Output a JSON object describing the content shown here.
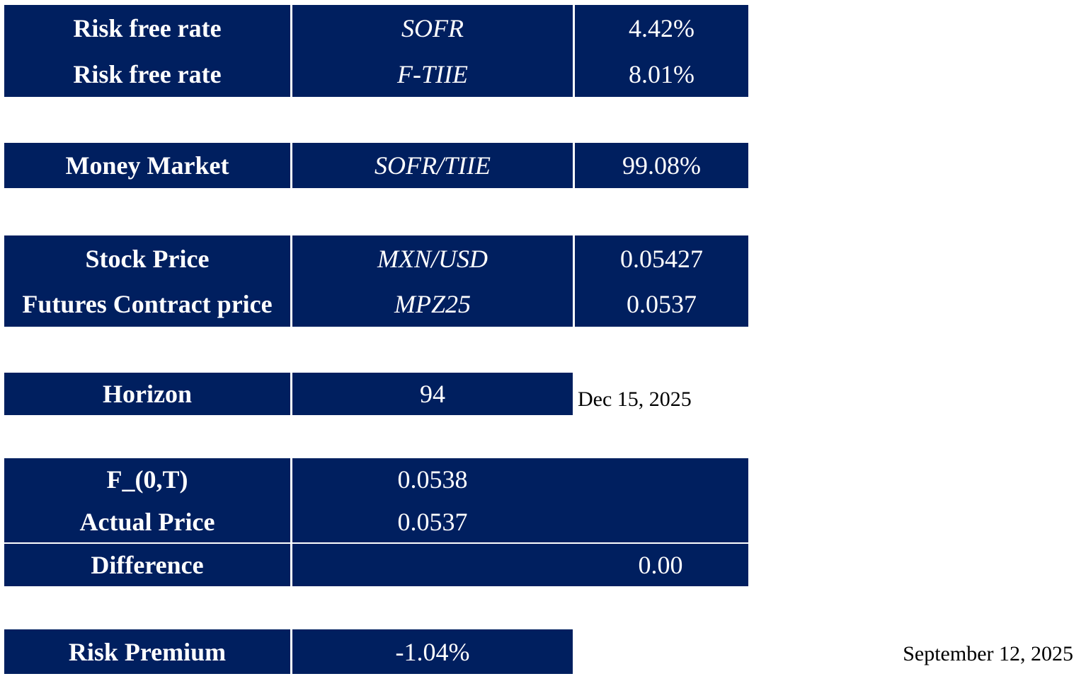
{
  "rates": {
    "rows": [
      {
        "label": "Risk free rate",
        "ticker": "SOFR",
        "value": "4.42%"
      },
      {
        "label": "Risk free rate",
        "ticker": "F-TIIE",
        "value": "8.01%"
      }
    ]
  },
  "money_market": {
    "label": "Money Market",
    "ticker": "SOFR/TIIE",
    "value": "99.08%"
  },
  "prices": {
    "rows": [
      {
        "label": "Stock Price",
        "ticker": "MXN/USD",
        "value": "0.05427"
      },
      {
        "label": "Futures Contract price",
        "ticker": "MPZ25",
        "value": "0.0537"
      }
    ]
  },
  "horizon": {
    "label": "Horizon",
    "value": "94",
    "date": "Dec 15, 2025"
  },
  "forward": {
    "f0t_label": "F_(0,T)",
    "f0t_value": "0.0538",
    "actual_label": "Actual Price",
    "actual_value": "0.0537",
    "difference_label": "Difference",
    "difference_value": "0.00"
  },
  "risk_premium": {
    "label": "Risk Premium",
    "value": "-1.04%"
  },
  "report_date": "September 12, 2025"
}
